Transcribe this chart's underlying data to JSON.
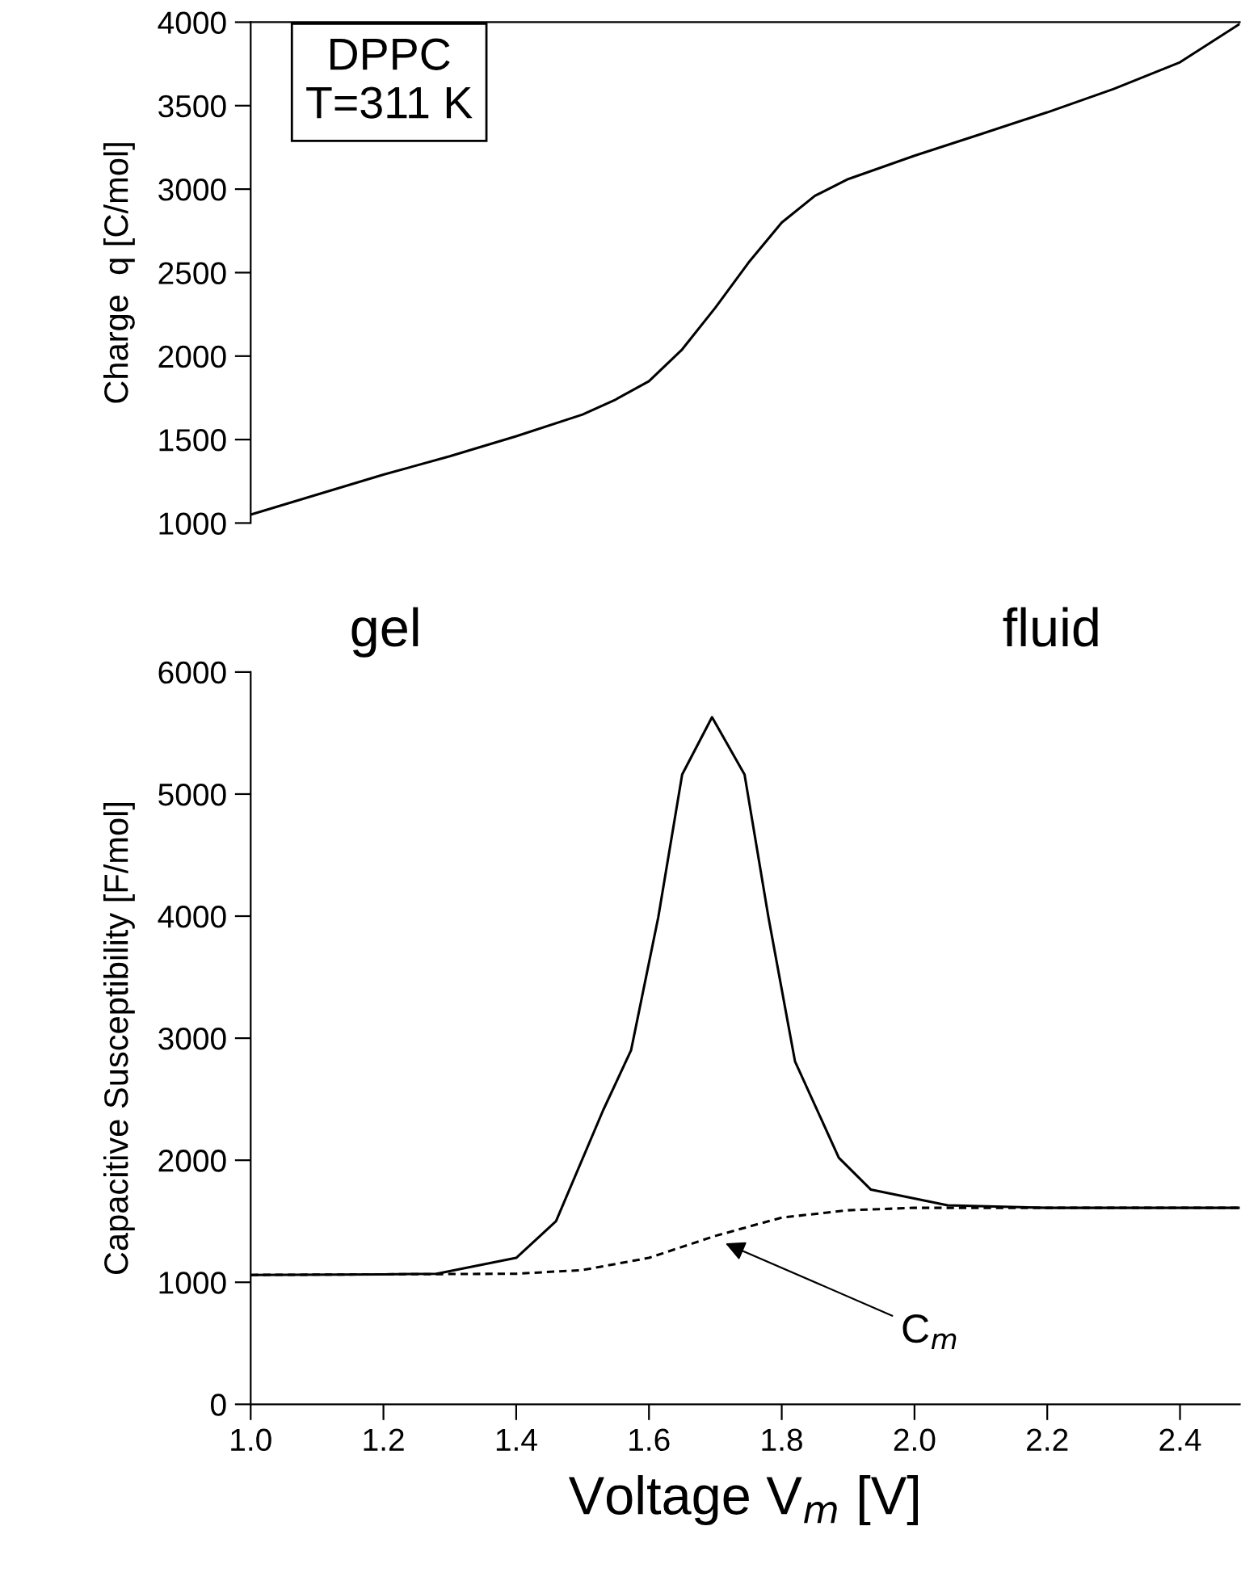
{
  "chart_data": [
    {
      "type": "line",
      "ylabel": "Charge  q [C/mol]",
      "xlim": [
        1.0,
        2.49
      ],
      "ylim": [
        1000,
        4000
      ],
      "yticks": [
        1000,
        1500,
        2000,
        2500,
        3000,
        3500,
        4000
      ],
      "tick_labels": "y",
      "line_style": "solid",
      "color": "#000000",
      "x": [
        1.0,
        1.1,
        1.2,
        1.3,
        1.4,
        1.5,
        1.55,
        1.6,
        1.65,
        1.7,
        1.75,
        1.8,
        1.85,
        1.9,
        2.0,
        2.1,
        2.2,
        2.3,
        2.4,
        2.49
      ],
      "values": [
        1050,
        1170,
        1290,
        1400,
        1520,
        1650,
        1740,
        1850,
        2040,
        2290,
        2560,
        2800,
        2960,
        3060,
        3200,
        3330,
        3460,
        3600,
        3760,
        3990
      ],
      "annotations": [
        "DPPC\nT=311 K"
      ]
    },
    {
      "type": "line",
      "ylabel": "Capacitive Susceptibility [F/mol]",
      "xlabel": "Voltage V$_{m}$ [V]",
      "xlim": [
        1.0,
        2.49
      ],
      "ylim": [
        0,
        6000
      ],
      "yticks": [
        0,
        1000,
        2000,
        3000,
        4000,
        5000,
        6000
      ],
      "xticks": [
        {
          "value": 1.0,
          "label": "1.0"
        },
        1.2,
        1.4,
        1.6,
        1.8,
        {
          "value": 2.0,
          "label": "2.0"
        },
        2.2,
        2.4
      ],
      "series": [
        {
          "color": "#000000",
          "line_style": "solid",
          "x": [
            1.0,
            1.2,
            1.28,
            1.4,
            1.46,
            1.531,
            1.573,
            1.614,
            1.65,
            1.695,
            1.744,
            1.78,
            1.82,
            1.886,
            1.934,
            2.05,
            2.2,
            2.49
          ],
          "values": [
            1060,
            1065,
            1070,
            1200,
            1500,
            2410,
            2900,
            3990,
            5160,
            5630,
            5160,
            3990,
            2810,
            2020,
            1760,
            1630,
            1610,
            1610
          ]
        },
        {
          "color": "#000000",
          "line_style": "dashed",
          "x": [
            1.0,
            1.4,
            1.5,
            1.6,
            1.7,
            1.8,
            1.9,
            2.0,
            2.49
          ],
          "values": [
            1060,
            1070,
            1100,
            1200,
            1380,
            1530,
            1590,
            1610,
            1610
          ]
        }
      ],
      "annotations": [
        "gel",
        "fluid",
        {
          "text": "C$_{m}$",
          "x": 1.709,
          "y": 1333
        }
      ]
    }
  ]
}
